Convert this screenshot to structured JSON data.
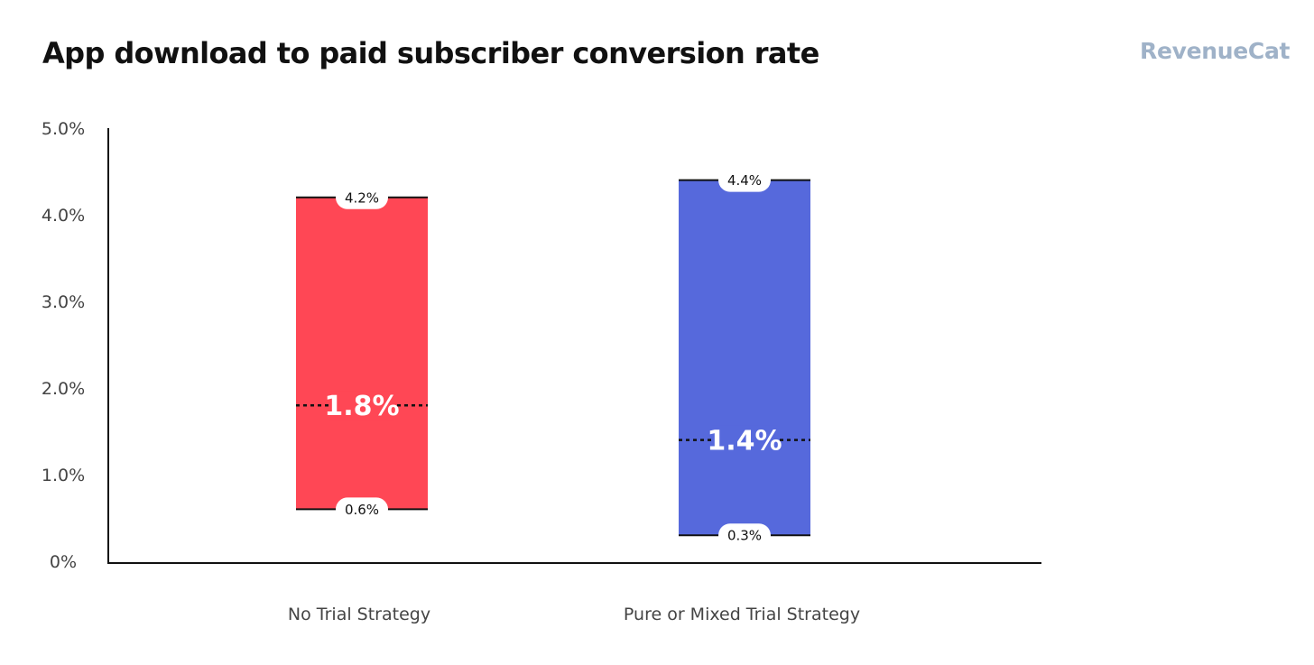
{
  "title": "App download to paid subscriber conversion rate",
  "brand": "RevenueCat",
  "colors": {
    "no_trial": "#ff4755",
    "trial": "#5669dc",
    "axis": "#111111",
    "logo": "#9fb2c8"
  },
  "chart_data": {
    "type": "range-bar",
    "title": "App download to paid subscriber conversion rate",
    "xlabel": "",
    "ylabel": "",
    "ylim": [
      0,
      5.0
    ],
    "yticks": [
      "0%",
      "1.0%",
      "2.0%",
      "3.0%",
      "4.0%",
      "5.0%"
    ],
    "ytick_values": [
      0,
      1.0,
      2.0,
      3.0,
      4.0,
      5.0
    ],
    "grid": false,
    "categories": [
      "No Trial Strategy",
      "Pure or Mixed Trial Strategy"
    ],
    "bars": [
      {
        "category": "No Trial Strategy",
        "low": 0.6,
        "high": 4.2,
        "median": 1.8,
        "low_label": "0.6%",
        "high_label": "4.2%",
        "median_label": "1.8%",
        "color": "#ff4755"
      },
      {
        "category": "Pure or Mixed Trial Strategy",
        "low": 0.3,
        "high": 4.4,
        "median": 1.4,
        "low_label": "0.3%",
        "high_label": "4.4%",
        "median_label": "1.4%",
        "color": "#5669dc"
      }
    ]
  }
}
